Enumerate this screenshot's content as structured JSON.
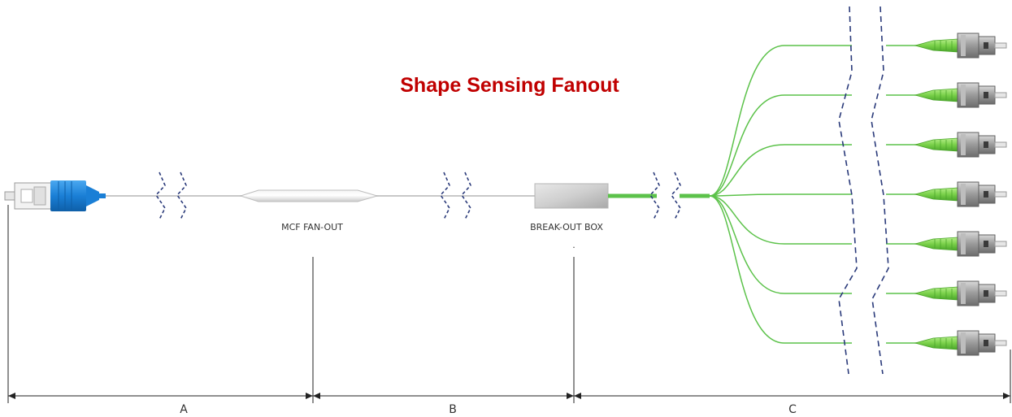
{
  "title": "Shape Sensing Fanout",
  "labels": {
    "mcf_fanout": "MCF FAN-OUT",
    "breakout_box": "BREAK-OUT BOX"
  },
  "dimensions": [
    {
      "id": "A",
      "label": "A"
    },
    {
      "id": "B",
      "label": "B"
    },
    {
      "id": "C",
      "label": "C"
    }
  ],
  "fanout_leg_count": 7,
  "colors": {
    "title": "#c00000",
    "sc_connector": "#1a7fd6",
    "fiber_green": "#5cc24a",
    "fc_boot": "#7ad14a",
    "break_marks": "#2a3a7a",
    "fiber_gray": "#c8c8c8"
  },
  "icons": {
    "left_connector": "sc-connector-icon",
    "right_connectors": "fc-connector-icon"
  }
}
